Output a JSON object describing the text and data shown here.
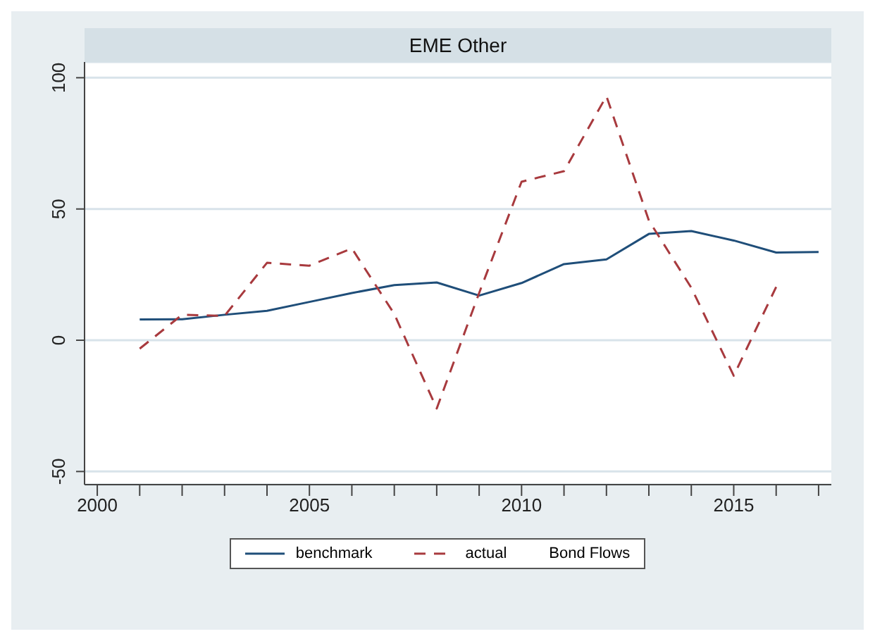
{
  "chart_data": {
    "type": "line",
    "title": "EME Other",
    "legend_title": "Bond Flows",
    "x": [
      2001,
      2002,
      2003,
      2004,
      2005,
      2006,
      2007,
      2008,
      2009,
      2010,
      2011,
      2012,
      2013,
      2014,
      2015,
      2016,
      2017
    ],
    "series": [
      {
        "name": "benchmark",
        "color": "#1f4e79",
        "line_style": "solid",
        "values": [
          7.9,
          8,
          9.7,
          11.2,
          14.6,
          18,
          21,
          22,
          17,
          21.8,
          29,
          30.8,
          40.5,
          41.6,
          38,
          33.4,
          33.6
        ]
      },
      {
        "name": "actual",
        "color": "#a83a3e",
        "line_style": "dashed",
        "values": [
          -3.2,
          9.7,
          9.3,
          29.5,
          28.4,
          35,
          10,
          -26,
          18,
          60.4,
          64.4,
          93,
          45.6,
          20,
          -13.5,
          20.3,
          null
        ]
      }
    ],
    "xlim": [
      1999.7,
      2017.3
    ],
    "xticks": [
      2000,
      {
        "value": 2001,
        "label": null
      },
      {
        "value": 2002,
        "label": null
      },
      {
        "value": 2003,
        "label": null
      },
      {
        "value": 2004,
        "label": null
      },
      2005,
      {
        "value": 2006,
        "label": null
      },
      {
        "value": 2007,
        "label": null
      },
      {
        "value": 2008,
        "label": null
      },
      {
        "value": 2009,
        "label": null
      },
      2010,
      {
        "value": 2011,
        "label": null
      },
      {
        "value": 2012,
        "label": null
      },
      {
        "value": 2013,
        "label": null
      },
      {
        "value": 2014,
        "label": null
      },
      2015,
      {
        "value": 2016,
        "label": null
      },
      {
        "value": 2017,
        "label": null
      }
    ],
    "ylim": [
      -55,
      106
    ],
    "yticks": [
      -50,
      0,
      50,
      100
    ],
    "grid": "y",
    "legend": "bottom",
    "marker": "none"
  }
}
